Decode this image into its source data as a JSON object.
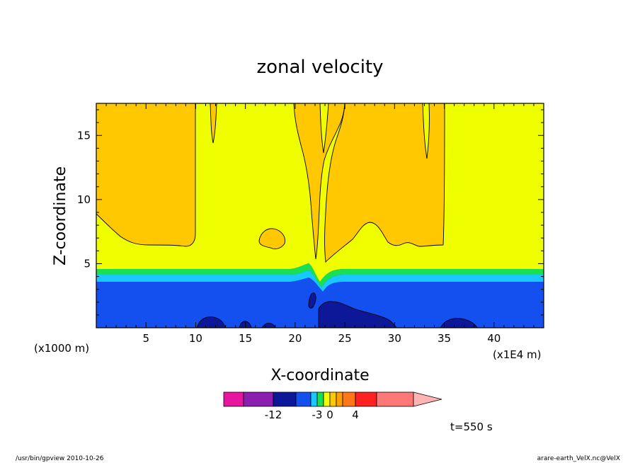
{
  "chart_data": {
    "type": "contour",
    "title": "zonal velocity",
    "xlabel": "X-coordinate",
    "ylabel": "Z-coordinate",
    "x_unit_left": "(x1000 m)",
    "x_unit_right": "(x1E4 m)",
    "xlim": [
      0,
      45
    ],
    "ylim": [
      0,
      17.5
    ],
    "x_ticks": [
      "5",
      "10",
      "15",
      "20",
      "25",
      "30",
      "35",
      "40"
    ],
    "y_ticks": [
      "5",
      "10",
      "15"
    ],
    "x_tick_values": [
      5,
      10,
      15,
      20,
      25,
      30,
      35,
      40
    ],
    "y_tick_values": [
      5,
      10,
      15
    ],
    "colorbar": {
      "colors": [
        "#e8159e",
        "#8a1fb0",
        "#0c1898",
        "#1450f0",
        "#18c8ff",
        "#18e050",
        "#f0ff00",
        "#ffc800",
        "#ffa000",
        "#ff7818",
        "#ff2020",
        "#ff7878",
        "#ffb4b4"
      ],
      "labels": [
        "-12",
        "-3",
        "0",
        "4"
      ]
    },
    "regions": [
      {
        "name": "deep-negative-bottom",
        "color": "#0c1898",
        "z_range": [
          0,
          1
        ]
      },
      {
        "name": "negative-lower-layer",
        "color": "#1450f0",
        "z_range": [
          0,
          3.7
        ]
      },
      {
        "name": "cyan-band",
        "color": "#18c8ff",
        "z_range": [
          3.7,
          4.2
        ]
      },
      {
        "name": "green-band",
        "color": "#18e050",
        "z_range": [
          4.2,
          4.8
        ]
      },
      {
        "name": "upper-yellow",
        "color": "#f0ff00",
        "z_range": [
          4.8,
          17.5
        ]
      },
      {
        "name": "upper-orange-cells",
        "color": "#ffc800",
        "z_range": [
          6.5,
          17.5
        ]
      }
    ]
  },
  "annotations": {
    "time": "t=550 s",
    "footer_left": "/usr/bin/gpview   2010-10-26",
    "footer_right": "arare-earth_VelX.nc@VelX"
  }
}
